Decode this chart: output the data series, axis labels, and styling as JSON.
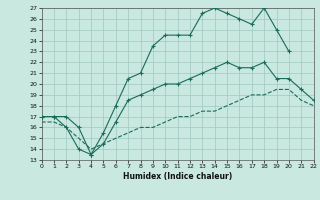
{
  "xlabel": "Humidex (Indice chaleur)",
  "bg_color": "#c8e8e0",
  "grid_color": "#a0c8c0",
  "line_color": "#1a6b5a",
  "xlim": [
    0,
    22
  ],
  "ylim": [
    13,
    27
  ],
  "xticks": [
    0,
    1,
    2,
    3,
    4,
    5,
    6,
    7,
    8,
    9,
    10,
    11,
    12,
    13,
    14,
    15,
    16,
    17,
    18,
    19,
    20,
    21,
    22
  ],
  "yticks": [
    13,
    14,
    15,
    16,
    17,
    18,
    19,
    20,
    21,
    22,
    23,
    24,
    25,
    26,
    27
  ],
  "line1_x": [
    0,
    1,
    2,
    3,
    4,
    5,
    6,
    7,
    8,
    9,
    10,
    11,
    12,
    13,
    14,
    15,
    16,
    17,
    18,
    19,
    20
  ],
  "line1_y": [
    17,
    17,
    17,
    16,
    13.5,
    15.5,
    18,
    20.5,
    21.0,
    23.5,
    24.5,
    24.5,
    24.5,
    26.5,
    27,
    26.5,
    26,
    25.5,
    27,
    25,
    23
  ],
  "line2_x": [
    0,
    1,
    2,
    3,
    4,
    5,
    6,
    7,
    8,
    9,
    10,
    11,
    12,
    13,
    14,
    15,
    16,
    17,
    18,
    19,
    20,
    21,
    22
  ],
  "line2_y": [
    17,
    17,
    16,
    14,
    13.5,
    14.5,
    16.5,
    18.5,
    19,
    19.5,
    20,
    20,
    20.5,
    21,
    21.5,
    22,
    21.5,
    21.5,
    22,
    20.5,
    20.5,
    19.5,
    18.5
  ],
  "line3_x": [
    0,
    1,
    2,
    3,
    4,
    5,
    6,
    7,
    8,
    9,
    10,
    11,
    12,
    13,
    14,
    15,
    16,
    17,
    18,
    19,
    20,
    21,
    22
  ],
  "line3_y": [
    16.5,
    16.5,
    16,
    15,
    14,
    14.5,
    15,
    15.5,
    16,
    16,
    16.5,
    17,
    17,
    17.5,
    17.5,
    18,
    18.5,
    19,
    19,
    19.5,
    19.5,
    18.5,
    18
  ]
}
